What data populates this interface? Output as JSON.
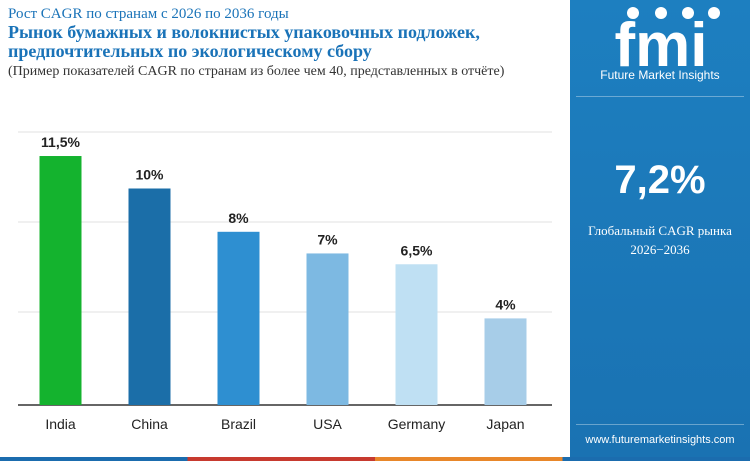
{
  "header": {
    "subtitle": "Рост CAGR по странам с 2026 по 2036 годы",
    "title_line1": "Рынок бумажных и волокнистых упаковочных подложек,",
    "title_line2": "предпочтительных по экологическому сбору",
    "note": "(Пример показателей CAGR по странам из более чем 40, представленных в отчёте)"
  },
  "chart_data": {
    "type": "bar",
    "categories": [
      "India",
      "China",
      "Brazil",
      "USA",
      "Germany",
      "Japan"
    ],
    "values": [
      11.5,
      10,
      8,
      7,
      6.5,
      4
    ],
    "value_labels": [
      "11,5%",
      "10%",
      "8%",
      "7%",
      "6,5%",
      "4%"
    ],
    "colors": [
      "#14b32e",
      "#1b6ea8",
      "#2e8fd1",
      "#7db9e2",
      "#bfe0f3",
      "#a7cde8"
    ],
    "title": "",
    "xlabel": "",
    "ylabel": "",
    "grid": true,
    "legend": "none"
  },
  "sidebar": {
    "brand": "Future Market Insights",
    "headline_value": "7,2%",
    "headline_label_line1": "Глобальный CAGR рынка",
    "headline_label_line2": "2026−2036",
    "url": "www.futuremarketinsights.com",
    "logo_letters": "fmi"
  },
  "colors": {
    "accent": "#1a73b8",
    "sidebar_bg": "#1d7fc0"
  }
}
